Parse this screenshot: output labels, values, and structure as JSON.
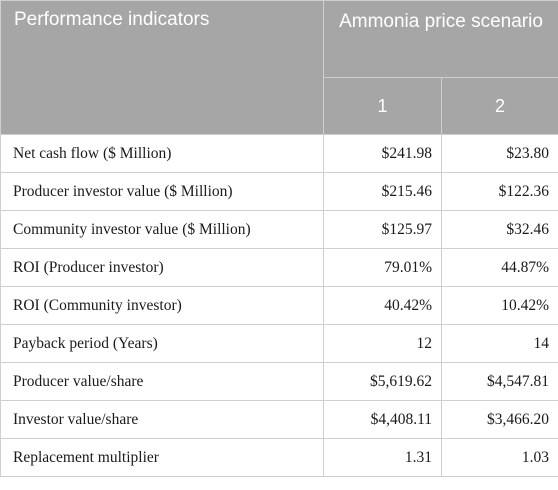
{
  "header": {
    "indicators_label": "Performance indicators",
    "scenario_label": "Ammonia price scenario",
    "scenario_columns": [
      "1",
      "2"
    ]
  },
  "rows": [
    {
      "label": "Net cash flow ($ Million)",
      "s1": "$241.98",
      "s2": "$23.80"
    },
    {
      "label": "Producer investor value ($ Million)",
      "s1": "$215.46",
      "s2": "$122.36"
    },
    {
      "label": "Community investor value ($ Million)",
      "s1": "$125.97",
      "s2": "$32.46"
    },
    {
      "label": "ROI (Producer investor)",
      "s1": "79.01%",
      "s2": "44.87%"
    },
    {
      "label": "ROI (Community investor)",
      "s1": "40.42%",
      "s2": "10.42%"
    },
    {
      "label": "Payback period (Years)",
      "s1": "12",
      "s2": "14"
    },
    {
      "label": "Producer value/share",
      "s1": "$5,619.62",
      "s2": "$4,547.81"
    },
    {
      "label": "Investor value/share",
      "s1": "$4,408.11",
      "s2": "$3,466.20"
    },
    {
      "label": "Replacement multiplier",
      "s1": "1.31",
      "s2": "1.03"
    }
  ]
}
